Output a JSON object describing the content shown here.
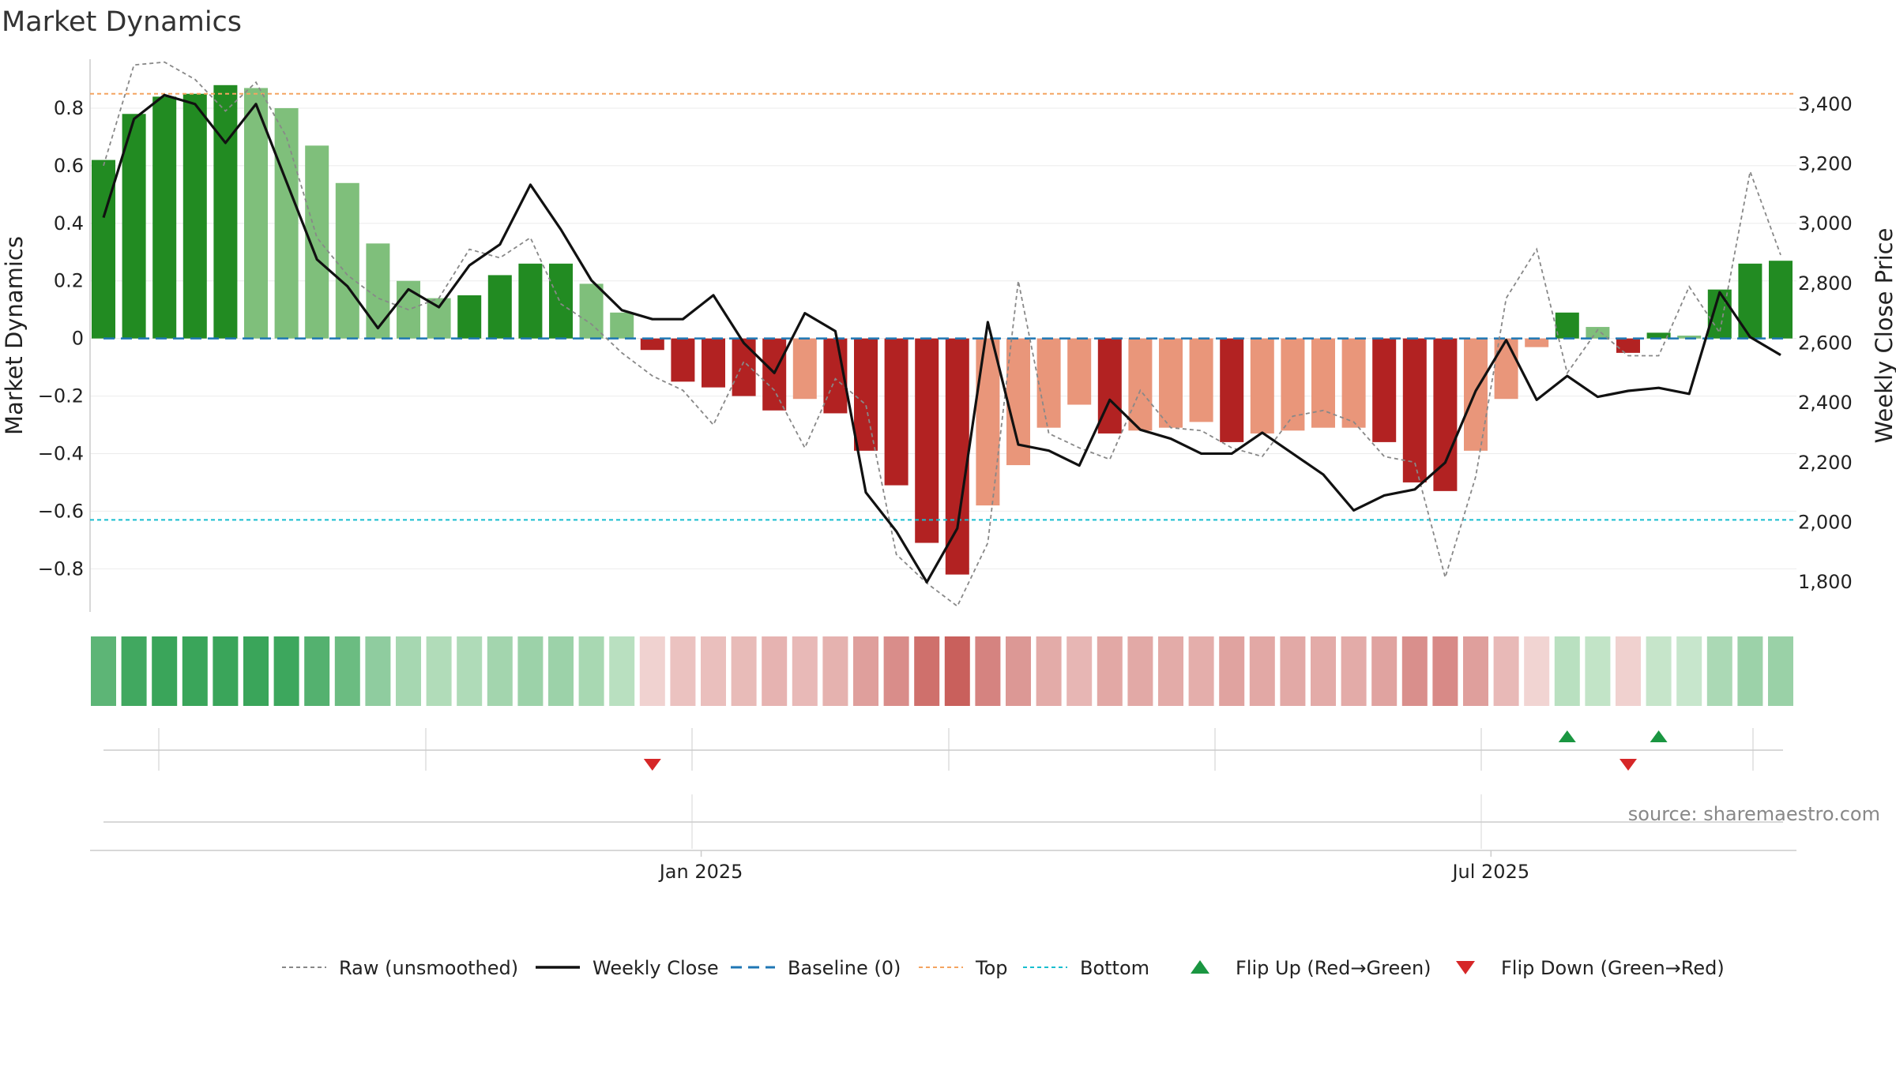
{
  "title": "Market Dynamics",
  "source": "source: sharemaestro.com",
  "chart_data": {
    "type": "bar",
    "title": "Market Dynamics",
    "ylabel_left": "Market Dynamics",
    "ylabel_right": "Weekly Close Price",
    "ylim_left": [
      -0.95,
      0.97
    ],
    "ylim_right": [
      1700,
      3550
    ],
    "yticks_left": [
      {
        "v": 0.8,
        "label": "0.8"
      },
      {
        "v": 0.6,
        "label": "0.6"
      },
      {
        "v": 0.4,
        "label": "0.4"
      },
      {
        "v": 0.2,
        "label": "0.2"
      },
      {
        "v": 0,
        "label": "0"
      },
      {
        "v": -0.2,
        "label": "−0.2"
      },
      {
        "v": -0.4,
        "label": "−0.4"
      },
      {
        "v": -0.6,
        "label": "−0.6"
      },
      {
        "v": -0.8,
        "label": "−0.8"
      }
    ],
    "yticks_right": [
      {
        "v": 3400,
        "label": "3,400"
      },
      {
        "v": 3200,
        "label": "3,200"
      },
      {
        "v": 3000,
        "label": "3,000"
      },
      {
        "v": 2800,
        "label": "2,800"
      },
      {
        "v": 2600,
        "label": "2,600"
      },
      {
        "v": 2400,
        "label": "2,400"
      },
      {
        "v": 2200,
        "label": "2,200"
      },
      {
        "v": 2000,
        "label": "2,000"
      },
      {
        "v": 1800,
        "label": "1,800"
      }
    ],
    "xticks": [
      {
        "index": 19.6,
        "label": "Jan 2025"
      },
      {
        "index": 45.5,
        "label": "Jul 2025"
      }
    ],
    "top_line": 0.85,
    "bottom_line": -0.63,
    "baseline": 0,
    "dynamics": [
      0.62,
      0.78,
      0.84,
      0.85,
      0.88,
      0.87,
      0.8,
      0.67,
      0.54,
      0.33,
      0.2,
      0.14,
      0.15,
      0.22,
      0.26,
      0.26,
      0.19,
      0.09,
      -0.04,
      -0.15,
      -0.17,
      -0.2,
      -0.25,
      -0.21,
      -0.26,
      -0.39,
      -0.51,
      -0.71,
      -0.82,
      -0.58,
      -0.44,
      -0.31,
      -0.23,
      -0.33,
      -0.32,
      -0.31,
      -0.29,
      -0.36,
      -0.33,
      -0.32,
      -0.31,
      -0.31,
      -0.36,
      -0.5,
      -0.53,
      -0.39,
      -0.21,
      -0.03,
      0.09,
      0.04,
      -0.05,
      0.02,
      0.01,
      0.17,
      0.26,
      0.27
    ],
    "bar_shade": [
      "dark",
      "dark",
      "dark",
      "dark",
      "dark",
      "light",
      "light",
      "light",
      "light",
      "light",
      "light",
      "light",
      "dark",
      "dark",
      "dark",
      "dark",
      "light",
      "light",
      "dark",
      "dark",
      "dark",
      "dark",
      "dark",
      "light",
      "dark",
      "dark",
      "dark",
      "dark",
      "dark",
      "light",
      "light",
      "light",
      "light",
      "dark",
      "light",
      "light",
      "light",
      "dark",
      "light",
      "light",
      "light",
      "light",
      "dark",
      "dark",
      "dark",
      "light",
      "light",
      "light",
      "dark",
      "light",
      "dark",
      "dark",
      "light",
      "dark",
      "dark",
      "dark"
    ],
    "raw": [
      0.6,
      0.95,
      0.96,
      0.9,
      0.79,
      0.89,
      0.7,
      0.35,
      0.22,
      0.14,
      0.1,
      0.14,
      0.31,
      0.28,
      0.35,
      0.12,
      0.05,
      -0.05,
      -0.13,
      -0.18,
      -0.3,
      -0.08,
      -0.18,
      -0.38,
      -0.14,
      -0.23,
      -0.75,
      -0.85,
      -0.93,
      -0.71,
      0.2,
      -0.33,
      -0.38,
      -0.42,
      -0.18,
      -0.31,
      -0.32,
      -0.38,
      -0.41,
      -0.27,
      -0.25,
      -0.29,
      -0.41,
      -0.43,
      -0.83,
      -0.48,
      0.14,
      0.31,
      -0.12,
      0.03,
      -0.06,
      -0.06,
      0.18,
      0.02,
      0.58,
      0.29
    ],
    "close": [
      3020,
      3350,
      3430,
      3400,
      3270,
      3400,
      3140,
      2880,
      2790,
      2650,
      2780,
      2720,
      2860,
      2930,
      3130,
      2980,
      2810,
      2710,
      2680,
      2680,
      2760,
      2600,
      2500,
      2700,
      2640,
      2100,
      1970,
      1800,
      1980,
      2670,
      2260,
      2240,
      2190,
      2410,
      2310,
      2280,
      2230,
      2230,
      2300,
      2230,
      2160,
      2040,
      2090,
      2110,
      2200,
      2440,
      2610,
      2410,
      2490,
      2420,
      2440,
      2450,
      2430,
      2770,
      2620,
      2560
    ],
    "flip_up": [
      48,
      51
    ],
    "flip_down": [
      18,
      50
    ],
    "colors": {
      "green_dark": "#228b22",
      "green_light": "#7fbf7b",
      "red_dark": "#b22222",
      "red_light": "#e9967a",
      "close": "#111111",
      "raw": "#888888",
      "baseline": "#1f77b4",
      "top": "#f4a460",
      "bottom": "#17becf",
      "flip_up": "#1a9641",
      "flip_down": "#d62728"
    },
    "legend": [
      {
        "type": "raw",
        "label": "Raw (unsmoothed)"
      },
      {
        "type": "close",
        "label": "Weekly Close"
      },
      {
        "type": "baseline",
        "label": "Baseline (0)"
      },
      {
        "type": "top",
        "label": "Top"
      },
      {
        "type": "bottom",
        "label": "Bottom"
      },
      {
        "type": "flip_up",
        "label": "Flip Up (Red→Green)"
      },
      {
        "type": "flip_down",
        "label": "Flip Down (Green→Red)"
      }
    ]
  }
}
